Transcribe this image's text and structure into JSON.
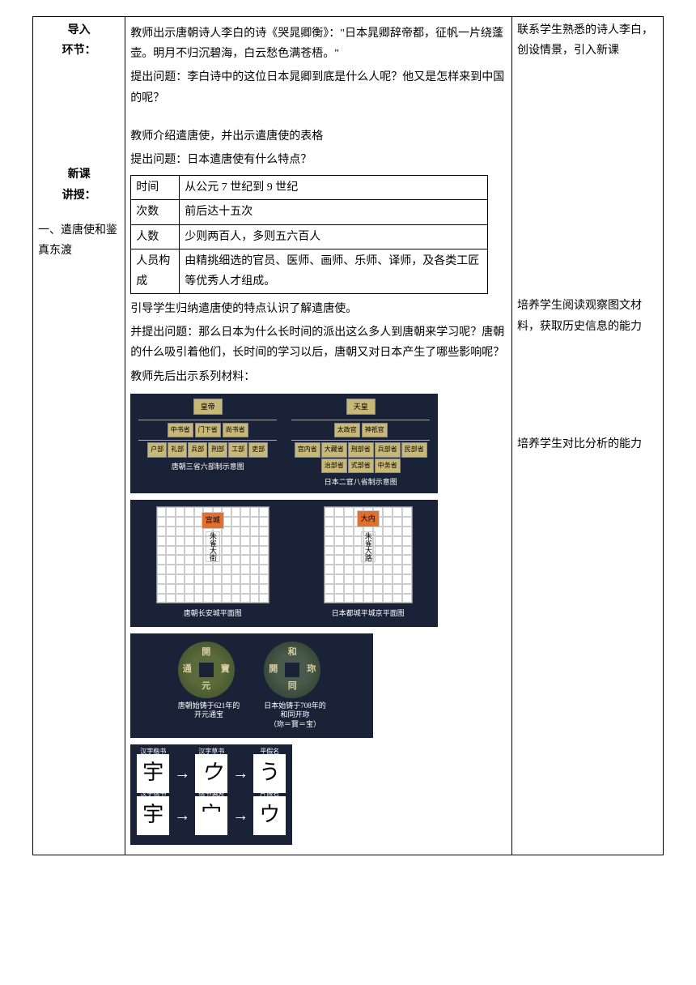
{
  "left": {
    "intro_title": "导入\n环节：",
    "lesson_title": "新课\n讲授：",
    "section1": "一、遣唐使和鉴真东渡"
  },
  "mid": {
    "p1": "教师出示唐朝诗人李白的诗《哭晁卿衡》：\"日本晁卿辞帝都，征帆一片绕蓬壶。明月不归沉碧海，白云愁色满苍梧。\"",
    "p2": "提出问题：李白诗中的这位日本晁卿到底是什么人呢？他又是怎样来到中国的呢？",
    "p3": "教师介绍遣唐使，并出示遣唐使的表格",
    "p4": "提出问题：日本遣唐使有什么特点？",
    "table": {
      "rows": [
        {
          "k": "时间",
          "v": "从公元 7 世纪到 9 世纪"
        },
        {
          "k": "次数",
          "v": "前后达十五次"
        },
        {
          "k": "人数",
          "v": "少则两百人，多则五六百人"
        },
        {
          "k": "人员构成",
          "v": "由精挑细选的官员、医师、画师、乐师、译师，及各类工匠等优秀人才组成。"
        }
      ]
    },
    "p5": "引导学生归纳遣唐使的特点认识了解遣唐使。",
    "p6": "并提出问题：那么日本为什么长时间的派出这么多人到唐朝来学习呢？唐朝的什么吸引着他们，长时间的学习以后，唐朝又对日本产生了哪些影响呢？",
    "p7": "教师先后出示系列材料：",
    "hier": {
      "tang": {
        "root": "皇帝",
        "mid": [
          "中书省",
          "门下省",
          "尚书省"
        ],
        "leaf": [
          "户部",
          "礼部",
          "兵部",
          "刑部",
          "工部",
          "吏部"
        ],
        "caption": "唐朝三省六部制示意图"
      },
      "jp": {
        "root": "天皇",
        "mid": [
          "太政官",
          "神祇官"
        ],
        "leaf": [
          "宫内省",
          "大藏省",
          "刑部省",
          "兵部省",
          "民部省",
          "治部省",
          "式部省",
          "中务省"
        ],
        "caption": "日本二官八省制示意图"
      }
    },
    "city": {
      "a": {
        "palace": "宫城",
        "vert": "朱雀大街",
        "caption": "唐朝长安城平面图"
      },
      "b": {
        "palace": "大内",
        "vert": "朱雀大路",
        "caption": "日本都城平城京平面图"
      }
    },
    "coins": {
      "a": {
        "chars": {
          "t": "開",
          "b": "元",
          "l": "通",
          "r": "寶"
        },
        "caption": "唐朝始铸于621年的\n开元通宝"
      },
      "b": {
        "chars": {
          "t": "和",
          "b": "同",
          "l": "開",
          "r": "珎"
        },
        "caption": "日本始铸于708年的\n和同开珎\n（珎＝寳＝宝）"
      }
    },
    "kana": {
      "row1": [
        {
          "lab": "汉字楷书",
          "g": "宇"
        },
        {
          "lab": "汉字草书",
          "g": "ウ"
        },
        {
          "lab": "平假名",
          "g": "う"
        }
      ],
      "row2": [
        {
          "lab": "汉字楷书",
          "g": "宇"
        },
        {
          "lab": "楷书偏旁",
          "g": "宀"
        },
        {
          "lab": "片假名",
          "g": "ウ"
        }
      ]
    }
  },
  "right": {
    "r1": "联系学生熟悉的诗人李白，创设情景，引入新课",
    "r2": "培养学生阅读观察图文材料，获取历史信息的能力",
    "r3": "培养学生对比分析的能力"
  },
  "colors": {
    "panel_bg": "#1a2238",
    "box_bg": "#c8b878"
  }
}
